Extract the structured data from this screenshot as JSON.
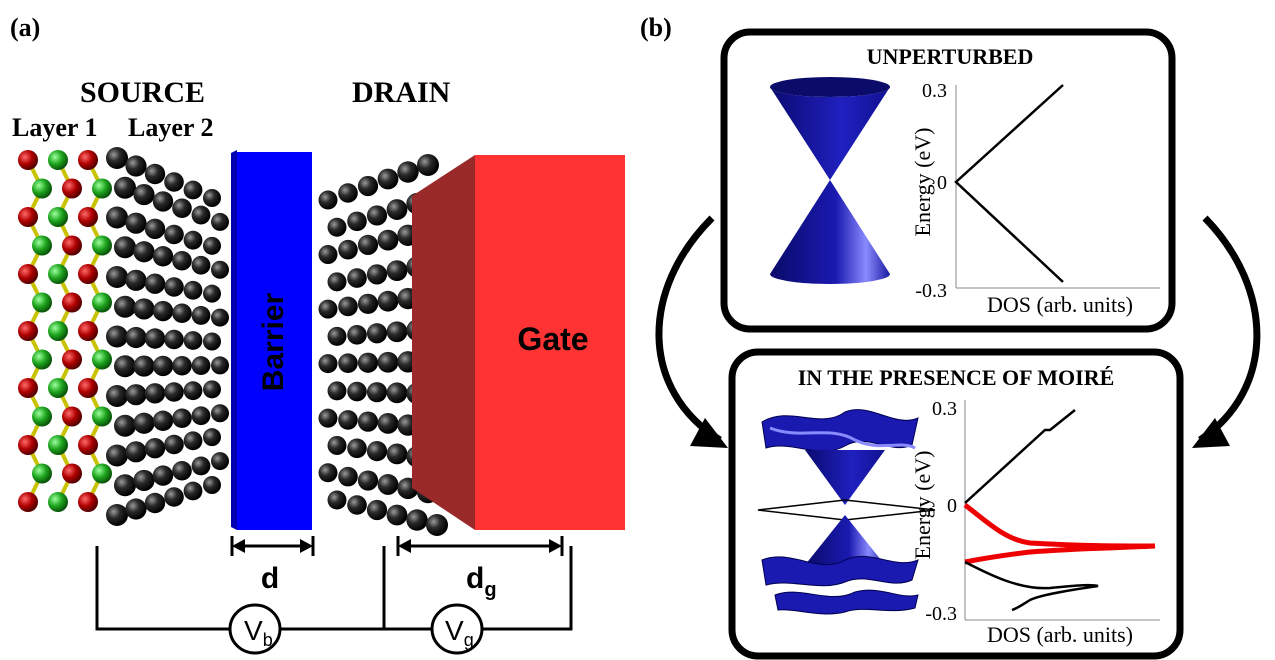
{
  "panel_a": {
    "label": "(a)",
    "source_label": "SOURCE",
    "drain_label": "DRAIN",
    "layer1_label": "Layer 1",
    "layer2_label": "Layer 2",
    "barrier_label": "Barrier",
    "gate_label": "Gate",
    "d_label": "d",
    "dg_main": "d",
    "dg_sub": "g",
    "vb_main": "V",
    "vb_sub": "b",
    "vg_main": "V",
    "vg_sub": "g"
  },
  "panel_b": {
    "label": "(b)",
    "top_title": "UNPERTURBED",
    "bottom_title": "IN THE PRESENCE OF MOIRÉ",
    "top_plot": {
      "ylabel": "Energy (eV)",
      "xlabel": "DOS (arb. units)",
      "ytick_top": "0.3",
      "ytick_mid": "0",
      "ytick_bottom": "-0.3"
    },
    "bottom_plot": {
      "ylabel": "Energy (eV)",
      "xlabel": "DOS (arb. units)",
      "ytick_top": "0.3",
      "ytick_mid": "0",
      "ytick_bottom": "-0.3"
    }
  },
  "colors": {
    "barrier": "#0000ff",
    "gate": "#ff3333",
    "cone": "#1a1aa8",
    "red_curve": "#ee0000",
    "atom_black": "#1a1a1a",
    "atom_red": "#b30000",
    "atom_green": "#22aa22"
  }
}
